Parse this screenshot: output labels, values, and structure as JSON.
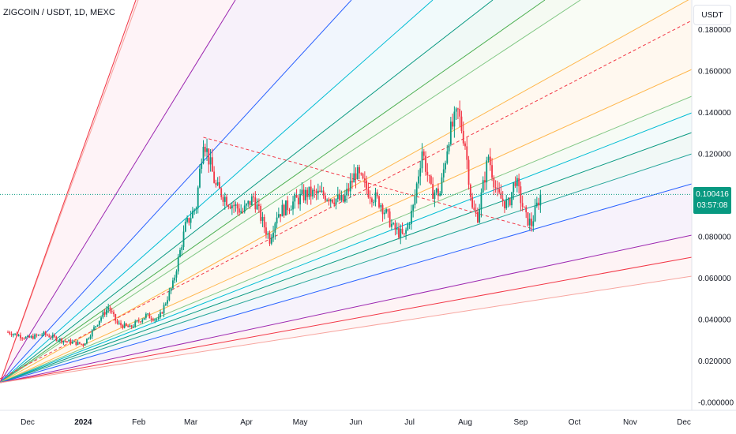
{
  "header": {
    "title": "ZIGCOIN / USDT, 1D, MEXC",
    "currency": "USDT"
  },
  "last_price": {
    "value": "0.100416",
    "countdown": "03:57:08",
    "color": "#089981"
  },
  "colors": {
    "up": "#089981",
    "down": "#f23645",
    "dashed": "#f23645"
  },
  "chart_data": {
    "type": "candlestick",
    "title": "ZIGCOIN / USDT, 1D, MEXC",
    "xlabel": "",
    "ylabel": "",
    "ylim": [
      -0.004,
      0.18
    ],
    "grid": false,
    "y_ticks": [
      "0.160000",
      "0.140000",
      "0.120000",
      "0.080000",
      "0.060000",
      "0.040000",
      "0.020000",
      "-0.000000"
    ],
    "y_tick_values": [
      0.16,
      0.14,
      0.12,
      0.08,
      0.06,
      0.04,
      0.02,
      0.0
    ],
    "y_tick_partial": "0.180000",
    "x_ticks": [
      "Dec",
      "2024",
      "Feb",
      "Mar",
      "Apr",
      "May",
      "Jun",
      "Jul",
      "Aug",
      "Sep",
      "Oct",
      "Nov",
      "Dec"
    ],
    "x_tick_dates": [
      "2023-12-01",
      "2024-01-01",
      "2024-02-01",
      "2024-03-01",
      "2024-04-01",
      "2024-05-01",
      "2024-06-01",
      "2024-07-01",
      "2024-08-01",
      "2024-09-01",
      "2024-10-01",
      "2024-11-01",
      "2024-12-01"
    ],
    "price_path": [
      [
        "2023-11-20",
        0.034
      ],
      [
        "2023-12-01",
        0.031
      ],
      [
        "2023-12-10",
        0.033
      ],
      [
        "2023-12-20",
        0.03
      ],
      [
        "2024-01-01",
        0.028
      ],
      [
        "2024-01-05",
        0.033
      ],
      [
        "2024-01-10",
        0.04
      ],
      [
        "2024-01-15",
        0.046
      ],
      [
        "2024-01-20",
        0.038
      ],
      [
        "2024-01-27",
        0.036
      ],
      [
        "2024-02-05",
        0.042
      ],
      [
        "2024-02-12",
        0.04
      ],
      [
        "2024-02-20",
        0.057
      ],
      [
        "2024-02-27",
        0.085
      ],
      [
        "2024-03-04",
        0.095
      ],
      [
        "2024-03-08",
        0.128
      ],
      [
        "2024-03-15",
        0.104
      ],
      [
        "2024-03-22",
        0.097
      ],
      [
        "2024-03-30",
        0.092
      ],
      [
        "2024-04-05",
        0.099
      ],
      [
        "2024-04-10",
        0.087
      ],
      [
        "2024-04-14",
        0.079
      ],
      [
        "2024-04-18",
        0.091
      ],
      [
        "2024-04-26",
        0.096
      ],
      [
        "2024-05-05",
        0.101
      ],
      [
        "2024-05-15",
        0.1
      ],
      [
        "2024-05-25",
        0.097
      ],
      [
        "2024-06-01",
        0.111
      ],
      [
        "2024-06-08",
        0.102
      ],
      [
        "2024-06-15",
        0.096
      ],
      [
        "2024-06-22",
        0.084
      ],
      [
        "2024-06-28",
        0.08
      ],
      [
        "2024-07-03",
        0.094
      ],
      [
        "2024-07-08",
        0.122
      ],
      [
        "2024-07-13",
        0.102
      ],
      [
        "2024-07-18",
        0.101
      ],
      [
        "2024-07-23",
        0.129
      ],
      [
        "2024-07-28",
        0.14
      ],
      [
        "2024-08-01",
        0.125
      ],
      [
        "2024-08-05",
        0.093
      ],
      [
        "2024-08-08",
        0.09
      ],
      [
        "2024-08-14",
        0.119
      ],
      [
        "2024-08-19",
        0.1
      ],
      [
        "2024-08-25",
        0.095
      ],
      [
        "2024-08-29",
        0.108
      ],
      [
        "2024-09-01",
        0.098
      ],
      [
        "2024-09-04",
        0.089
      ],
      [
        "2024-09-07",
        0.086
      ],
      [
        "2024-09-09",
        0.092
      ],
      [
        "2024-09-12",
        0.1004
      ]
    ],
    "last_value": 0.100416
  }
}
